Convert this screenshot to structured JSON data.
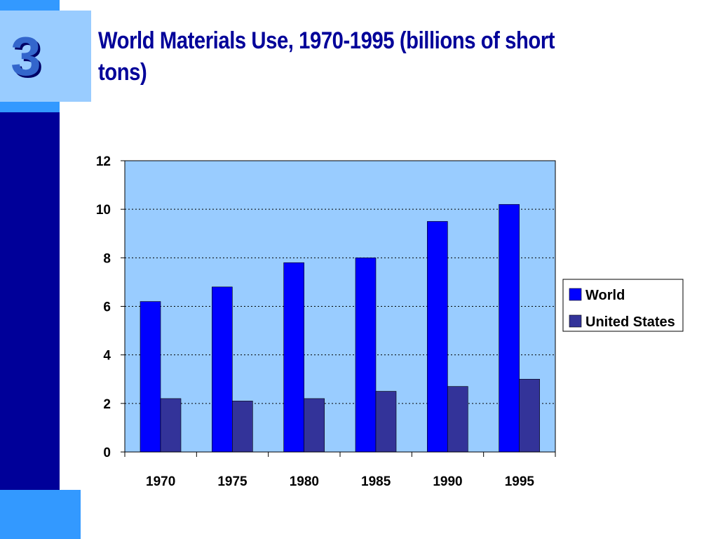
{
  "slide": {
    "number": "3",
    "title": "World Materials Use, 1970-1995 (billions of short tons)"
  },
  "colors": {
    "left_bar": "#000099",
    "accent_light": "#99ccff",
    "accent_mid": "#3399ff",
    "plot_background": "#99ccff",
    "world": "#0000ff",
    "united_states": "#333399",
    "title": "#000099"
  },
  "chart_data": {
    "type": "bar",
    "title": "World Materials Use, 1970-1995 (billions of short tons)",
    "categories": [
      "1970",
      "1975",
      "1980",
      "1985",
      "1990",
      "1995"
    ],
    "series": [
      {
        "name": "World",
        "values": [
          6.2,
          6.8,
          7.8,
          8.0,
          9.5,
          10.2
        ]
      },
      {
        "name": "United States",
        "values": [
          2.2,
          2.1,
          2.2,
          2.5,
          2.7,
          3.0
        ]
      }
    ],
    "ylim": [
      0,
      12
    ],
    "yticks": [
      0,
      2,
      4,
      6,
      8,
      10,
      12
    ],
    "grid": true,
    "legend": "right"
  }
}
